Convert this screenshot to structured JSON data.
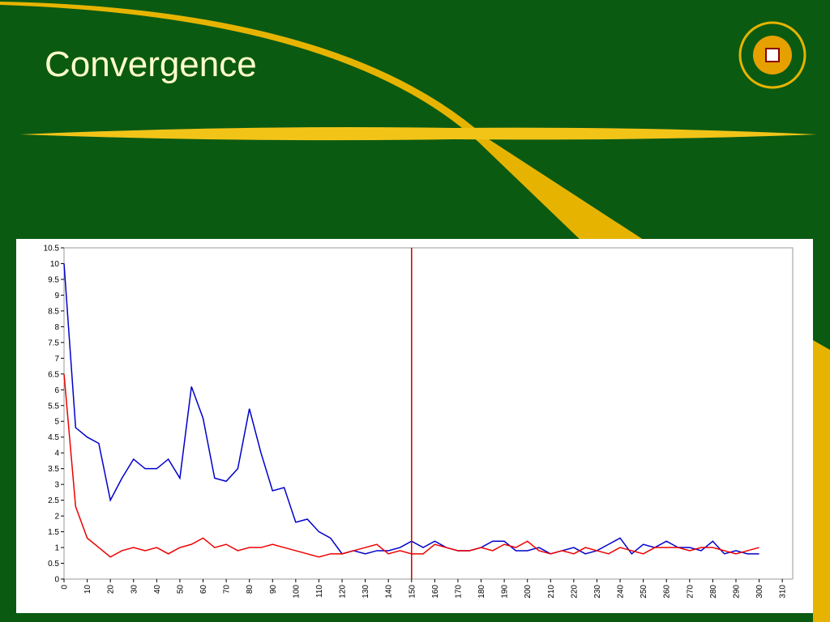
{
  "slide_title": "Convergence",
  "chart_data": {
    "type": "line",
    "x": [
      0,
      5,
      10,
      15,
      20,
      25,
      30,
      35,
      40,
      45,
      50,
      55,
      60,
      65,
      70,
      75,
      80,
      85,
      90,
      95,
      100,
      105,
      110,
      115,
      120,
      125,
      130,
      135,
      140,
      145,
      150,
      155,
      160,
      165,
      170,
      175,
      180,
      185,
      190,
      195,
      200,
      205,
      210,
      215,
      220,
      225,
      230,
      235,
      240,
      245,
      250,
      255,
      260,
      265,
      270,
      275,
      280,
      285,
      290,
      295,
      300
    ],
    "series": [
      {
        "color": "#0000cc",
        "values": [
          10,
          4.8,
          4.5,
          4.3,
          2.5,
          3.2,
          3.8,
          3.5,
          3.5,
          3.8,
          3.2,
          6.1,
          5.1,
          3.2,
          3.1,
          3.5,
          5.4,
          4.0,
          2.8,
          2.9,
          1.8,
          1.9,
          1.5,
          1.3,
          0.8,
          0.9,
          0.8,
          0.9,
          0.9,
          1.0,
          1.2,
          1.0,
          1.2,
          1.0,
          0.9,
          0.9,
          1.0,
          1.2,
          1.2,
          0.9,
          0.9,
          1.0,
          0.8,
          0.9,
          1.0,
          0.8,
          0.9,
          1.1,
          1.3,
          0.8,
          1.1,
          1.0,
          1.2,
          1.0,
          1.0,
          0.9,
          1.2,
          0.8,
          0.9,
          0.8,
          0.8
        ]
      },
      {
        "color": "#ee0000",
        "values": [
          6.5,
          2.3,
          1.3,
          1.0,
          0.7,
          0.9,
          1.0,
          0.9,
          1.0,
          0.8,
          1.0,
          1.1,
          1.3,
          1.0,
          1.1,
          0.9,
          1.0,
          1.0,
          1.1,
          1.0,
          0.9,
          0.8,
          0.7,
          0.8,
          0.8,
          0.9,
          1.0,
          1.1,
          0.8,
          0.9,
          0.8,
          0.8,
          1.1,
          1.0,
          0.9,
          0.9,
          1.0,
          0.9,
          1.1,
          1.0,
          1.2,
          0.9,
          0.8,
          0.9,
          0.8,
          1.0,
          0.9,
          0.8,
          1.0,
          0.9,
          0.8,
          1.0,
          1.0,
          1.0,
          0.9,
          1.0,
          1.0,
          0.9,
          0.8,
          0.9,
          1.0
        ]
      }
    ],
    "vline": 150,
    "vline_color": "#cc0000",
    "xlim": [
      0,
      314.5
    ],
    "ylim": [
      0,
      10.5
    ],
    "xticks": [
      0,
      10,
      20,
      30,
      40,
      50,
      60,
      70,
      80,
      90,
      100,
      110,
      120,
      130,
      140,
      150,
      160,
      170,
      180,
      190,
      200,
      210,
      220,
      230,
      240,
      250,
      260,
      270,
      280,
      290,
      300,
      310
    ],
    "yticks": [
      0,
      0.5,
      1,
      1.5,
      2,
      2.5,
      3,
      3.5,
      4,
      4.5,
      5,
      5.5,
      6,
      6.5,
      7,
      7.5,
      8,
      8.5,
      9,
      9.5,
      10,
      10.5
    ]
  }
}
